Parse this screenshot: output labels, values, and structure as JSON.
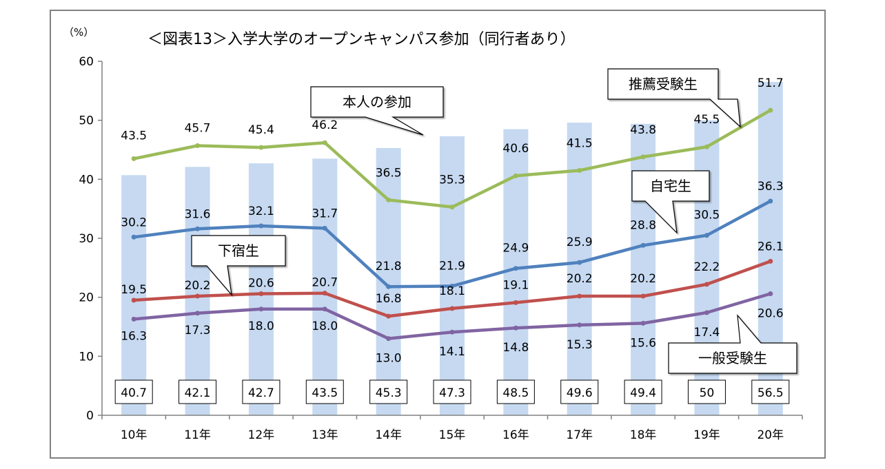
{
  "chart_data": {
    "type": "bar+line",
    "title": "＜図表13＞入学大学のオープンキャンパス参加（同行者あり）",
    "ylabel": "（%）",
    "ylim": [
      0,
      60
    ],
    "yticks": [
      0,
      10,
      20,
      30,
      40,
      50,
      60
    ],
    "grid": false,
    "categories": [
      "10年",
      "11年",
      "12年",
      "13年",
      "14年",
      "15年",
      "16年",
      "17年",
      "18年",
      "19年",
      "20年"
    ],
    "bars": {
      "name": "本人の参加",
      "color": "#c6d9f1",
      "values": [
        40.7,
        42.1,
        42.7,
        43.5,
        45.3,
        47.3,
        48.5,
        49.6,
        49.4,
        50.0,
        56.5
      ]
    },
    "series": [
      {
        "name": "推薦受験生",
        "color": "#9bbb59",
        "values": [
          43.5,
          45.7,
          45.4,
          46.2,
          36.5,
          35.3,
          40.6,
          41.5,
          43.8,
          45.5,
          51.7
        ],
        "labels": [
          "43.5",
          "45.7",
          "45.4",
          "46.2",
          "36.5",
          "35.3",
          "40.6",
          "41.5",
          "43.8",
          "45.5",
          "51.7"
        ]
      },
      {
        "name": "自宅生",
        "color": "#4f81bd",
        "values": [
          30.2,
          31.6,
          32.1,
          31.7,
          21.8,
          21.9,
          24.9,
          25.9,
          28.8,
          30.5,
          36.3
        ],
        "labels": [
          "30.2",
          "31.6",
          "32.1",
          "31.7",
          "21.8",
          "21.9",
          "24.9",
          "25.9",
          "28.8",
          "30.5",
          "36.3"
        ]
      },
      {
        "name": "下宿生",
        "color": "#c0504d",
        "values": [
          19.5,
          20.2,
          20.6,
          20.7,
          16.8,
          18.1,
          19.1,
          20.2,
          20.2,
          22.2,
          26.1
        ],
        "labels": [
          "19.5",
          "20.2",
          "20.6",
          "20.7",
          "16.8",
          "18.1",
          "19.1",
          "20.2",
          "20.2",
          "22.2",
          "26.1"
        ]
      },
      {
        "name": "一般受験生",
        "color": "#8064a2",
        "values": [
          16.3,
          17.3,
          18.0,
          18.0,
          13.0,
          14.1,
          14.8,
          15.3,
          15.6,
          17.4,
          20.6
        ],
        "labels": [
          "16.3",
          "17.3",
          "18.0",
          "18.0",
          "13.0",
          "14.1",
          "14.8",
          "15.3",
          "15.6",
          "17.4",
          "20.6"
        ]
      }
    ],
    "callouts": [
      "本人の参加",
      "推薦受験生",
      "自宅生",
      "下宿生",
      "一般受験生"
    ]
  }
}
